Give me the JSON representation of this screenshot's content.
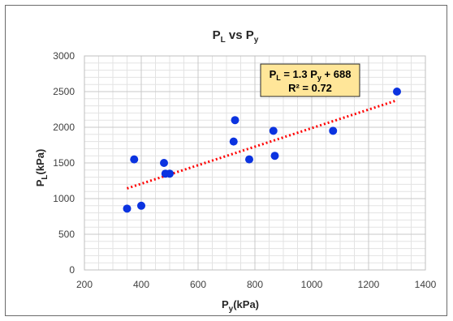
{
  "chart_data": {
    "type": "scatter",
    "title": {
      "main": "P",
      "main_sub": "L",
      "mid": " vs P",
      "mid_sub": "y"
    },
    "xlabel": {
      "main": "P",
      "sub": "y",
      "rest": "(kPa)"
    },
    "ylabel": {
      "main": "P",
      "sub": "L",
      "rest": "(kPa)"
    },
    "xlim": [
      200,
      1400
    ],
    "ylim": [
      0,
      3000
    ],
    "xticks": [
      200,
      400,
      600,
      800,
      1000,
      1200,
      1400
    ],
    "yticks": [
      0,
      500,
      1000,
      1500,
      2000,
      2500,
      3000
    ],
    "grid": true,
    "point_color": "#0b33e0",
    "trend_color": "#ff0000",
    "series": [
      {
        "x": [
          350,
          375,
          400,
          480,
          485,
          500,
          725,
          730,
          780,
          865,
          870,
          1075,
          1300
        ],
        "y": [
          860,
          1550,
          900,
          1500,
          1350,
          1350,
          1800,
          2100,
          1550,
          1950,
          1600,
          1950,
          2500
        ]
      }
    ],
    "trendline": {
      "slope": 1.3,
      "intercept": 688,
      "x_range": [
        350,
        1300
      ],
      "label_line1": {
        "a": "P",
        "a_sub": "L",
        "b": " = 1.3 P",
        "b_sub": "y",
        "c": " + 688"
      },
      "label_line2": "R² = 0.72",
      "label_bg": "#ffe699",
      "label_border": "#262626"
    }
  }
}
